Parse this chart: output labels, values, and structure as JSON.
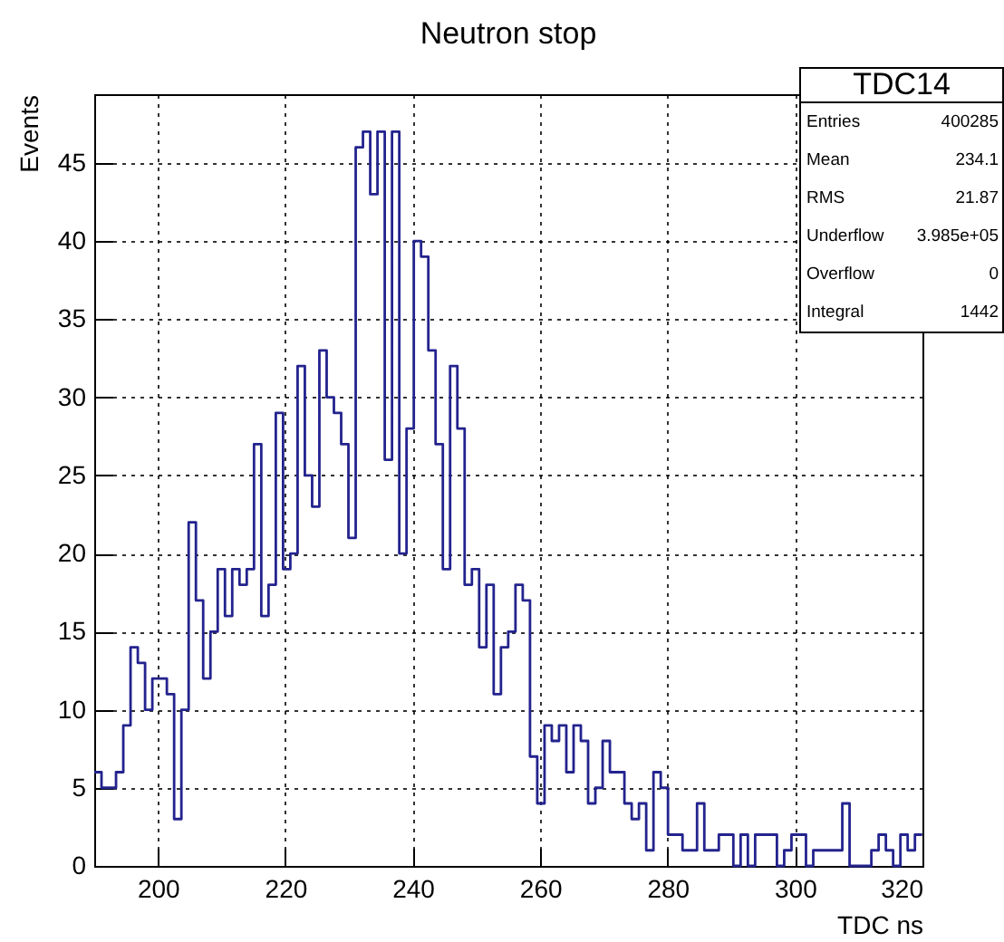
{
  "chart_data": {
    "type": "histogram",
    "title": "Neutron stop",
    "xlabel": "TDC ns",
    "ylabel": "Events",
    "bins": [
      190,
      191.14,
      192.28,
      193.42,
      194.56,
      195.7,
      196.84,
      197.98,
      199.12,
      200.26,
      201.4,
      202.54,
      203.68,
      204.82,
      205.96,
      207.1,
      208.24,
      209.38,
      210.52,
      211.66,
      212.8,
      213.94,
      215.08,
      216.22,
      217.36,
      218.5,
      219.64,
      220.78,
      221.92,
      223.06,
      224.2,
      225.34,
      226.48,
      227.62,
      228.76,
      229.9,
      231.04,
      232.18,
      233.32,
      234.46,
      235.6,
      236.74,
      237.88,
      239.02,
      240.16,
      241.3,
      242.44,
      243.58,
      244.72,
      245.86,
      247,
      248.14,
      249.28,
      250.42,
      251.56,
      252.7,
      253.84,
      254.98,
      256.12,
      257.26,
      258.4,
      259.54,
      260.68,
      261.82,
      262.96,
      264.1,
      265.24,
      266.38,
      267.52,
      268.66,
      269.8,
      270.94,
      272.08,
      273.22,
      274.36,
      275.5,
      276.64,
      277.78,
      278.92,
      280.06,
      281.2,
      282.34,
      283.48,
      284.62,
      285.76,
      286.9,
      288.04,
      289.18,
      290.32,
      291.46,
      292.6,
      293.74,
      294.88,
      296.02,
      297.16,
      298.3,
      299.44,
      300.58,
      301.72,
      302.86,
      304,
      305.14,
      306.28,
      307.42,
      308.56,
      309.7,
      310.84,
      311.98,
      313.12,
      314.26,
      315.4,
      316.54,
      317.68,
      318.82,
      319.96
    ],
    "values": [
      6,
      5,
      5,
      6,
      9,
      14,
      13,
      10,
      12,
      12,
      11,
      3,
      10,
      22,
      17,
      12,
      15,
      19,
      16,
      19,
      18,
      19,
      27,
      16,
      18,
      29,
      19,
      20,
      32,
      25,
      23,
      33,
      30,
      29,
      27,
      21,
      46,
      47,
      43,
      47,
      26,
      47,
      20,
      28,
      40,
      39,
      33,
      27,
      19,
      32,
      28,
      18,
      19,
      14,
      18,
      11,
      14,
      15,
      18,
      17,
      7,
      4,
      9,
      8,
      9,
      6,
      9,
      8,
      4,
      5,
      8,
      6,
      6,
      4,
      3,
      4,
      1,
      6,
      5,
      2,
      2,
      1,
      1,
      4,
      1,
      1,
      2,
      2,
      0,
      2,
      0,
      2,
      2,
      2,
      0,
      1,
      2,
      2,
      0,
      1,
      1,
      1,
      1,
      4,
      0,
      0,
      0,
      1,
      2,
      1,
      0,
      2,
      1,
      2
    ],
    "color": "#23238e",
    "xlim": [
      190,
      320
    ],
    "xticks": [
      200,
      220,
      240,
      260,
      280,
      300,
      320
    ],
    "ylim": [
      0,
      49.4
    ],
    "yticks": [
      0,
      5,
      10,
      15,
      20,
      25,
      30,
      35,
      40,
      45
    ],
    "grid": true,
    "annotations": [
      "TDC14",
      "Entries 400285",
      "Mean 234.1",
      "RMS 21.87",
      "Underflow 3.985e+05",
      "Overflow 0",
      "Integral 1442"
    ]
  }
}
